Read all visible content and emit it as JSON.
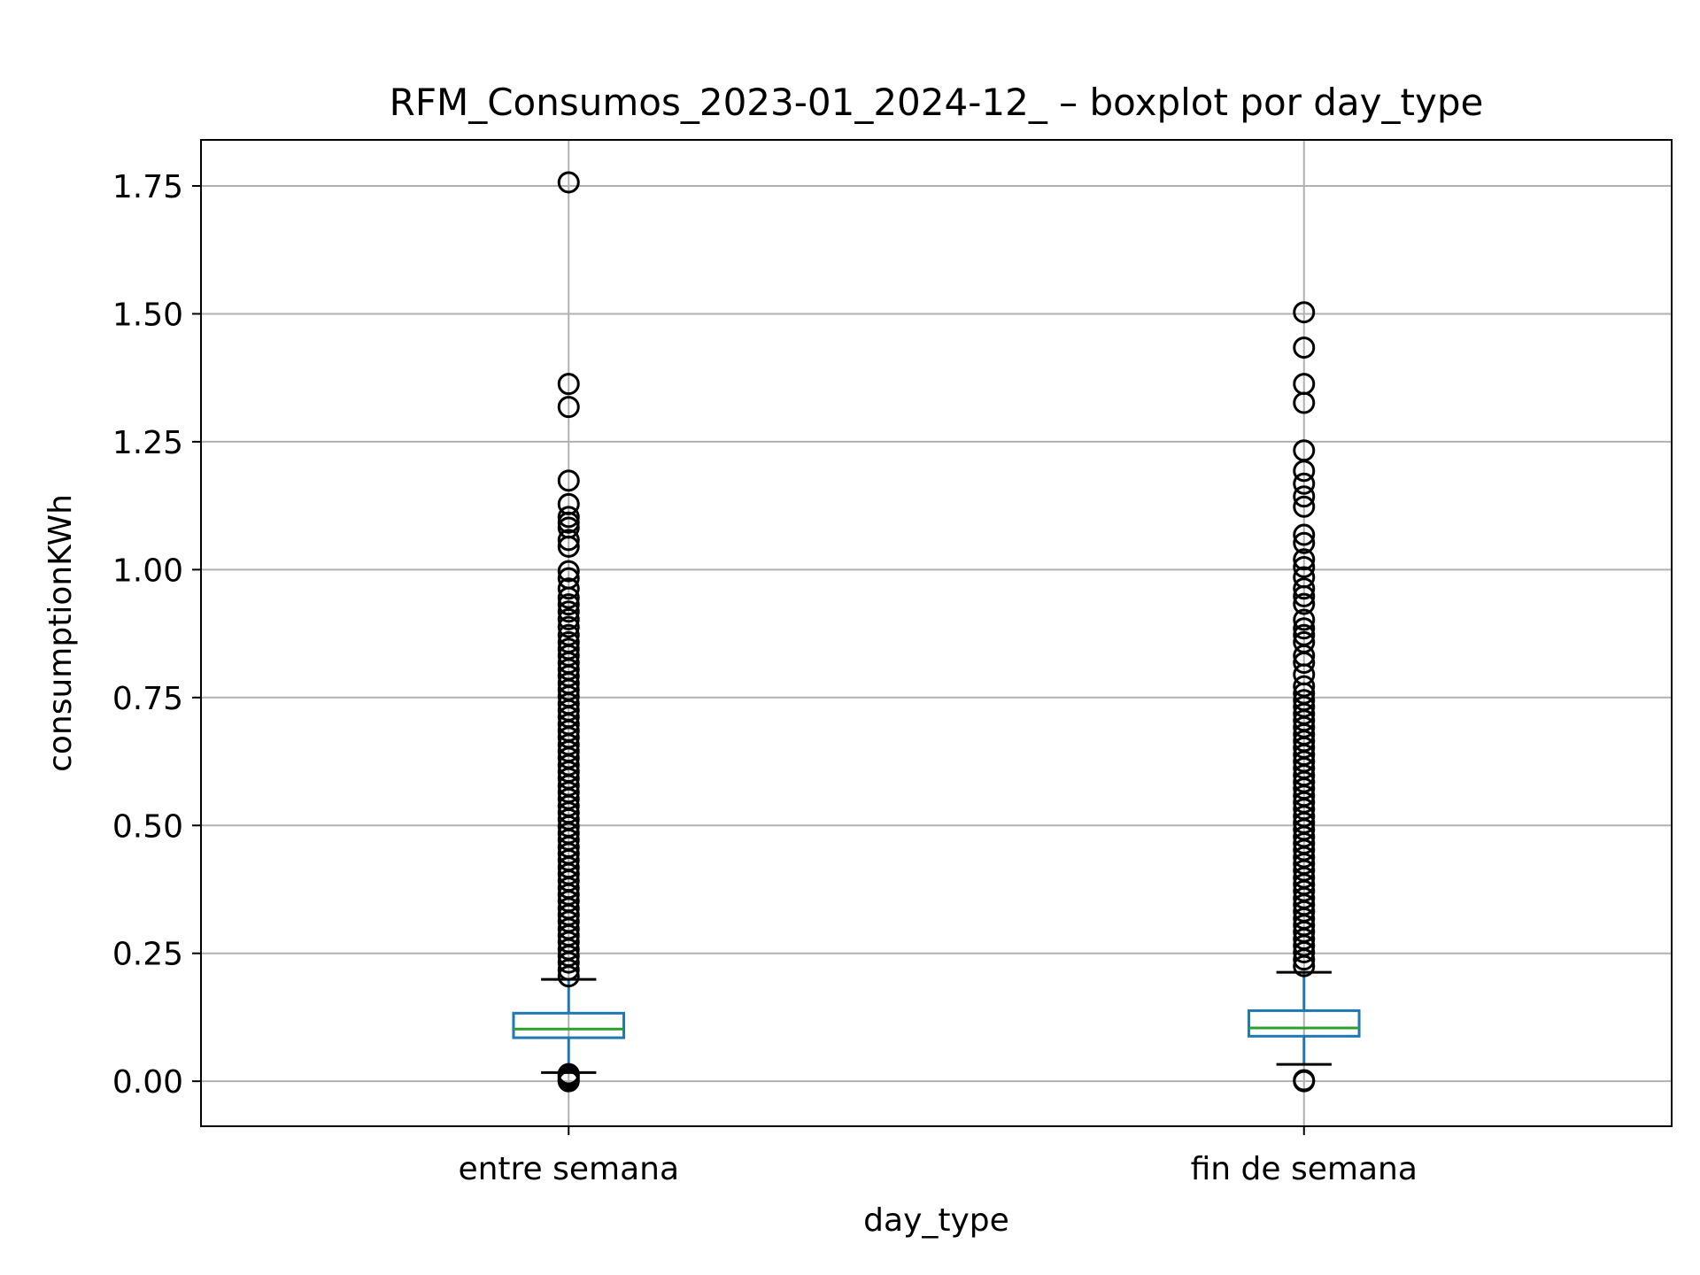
{
  "chart_data": {
    "type": "box",
    "title": "RFM_Consumos_2023-01_2024-12_ – boxplot por day_type",
    "xlabel": "day_type",
    "ylabel": "consumptionKWh",
    "ylim": [
      -0.088,
      1.84
    ],
    "grid": true,
    "yticks": [
      0.0,
      0.25,
      0.5,
      0.75,
      1.0,
      1.25,
      1.5,
      1.75
    ],
    "ytick_labels": [
      "0.00",
      "0.25",
      "0.50",
      "0.75",
      "1.00",
      "1.25",
      "1.50",
      "1.75"
    ],
    "categories": [
      "entre semana",
      "fin de semana"
    ],
    "boxes": [
      {
        "category": "entre semana",
        "whisker_low": 0.017,
        "q1": 0.085,
        "median": 0.102,
        "q3": 0.133,
        "whisker_high": 0.199,
        "outliers_high": [
          1.757,
          1.363,
          1.318,
          1.174,
          1.128,
          1.103,
          1.092,
          1.082,
          1.058,
          1.045,
          0.997,
          0.983,
          0.963,
          0.945,
          0.932,
          0.918,
          0.903,
          0.888,
          0.872,
          0.858,
          0.845,
          0.832,
          0.818,
          0.805,
          0.792,
          0.778,
          0.765,
          0.752,
          0.738,
          0.725,
          0.712,
          0.698,
          0.685,
          0.672,
          0.658,
          0.645,
          0.632,
          0.618,
          0.605,
          0.592,
          0.578,
          0.565,
          0.552,
          0.538,
          0.525,
          0.512,
          0.498,
          0.485,
          0.472,
          0.458,
          0.445,
          0.432,
          0.418,
          0.405,
          0.392,
          0.378,
          0.365,
          0.352,
          0.338,
          0.325,
          0.312,
          0.298,
          0.285,
          0.272,
          0.258,
          0.245,
          0.232,
          0.218,
          0.205
        ],
        "outliers_low": [
          0.014,
          0.01,
          0.006,
          0.002,
          0.0
        ]
      },
      {
        "category": "fin de semana",
        "whisker_low": 0.033,
        "q1": 0.088,
        "median": 0.104,
        "q3": 0.138,
        "whisker_high": 0.213,
        "outliers_high": [
          1.503,
          1.434,
          1.363,
          1.326,
          1.233,
          1.193,
          1.168,
          1.143,
          1.123,
          1.068,
          1.052,
          1.02,
          1.005,
          0.985,
          0.963,
          0.948,
          0.933,
          0.902,
          0.885,
          0.872,
          0.858,
          0.832,
          0.818,
          0.795,
          0.772,
          0.758,
          0.745,
          0.732,
          0.718,
          0.705,
          0.692,
          0.678,
          0.665,
          0.652,
          0.638,
          0.625,
          0.612,
          0.598,
          0.585,
          0.572,
          0.558,
          0.545,
          0.532,
          0.518,
          0.505,
          0.492,
          0.478,
          0.465,
          0.452,
          0.438,
          0.425,
          0.412,
          0.398,
          0.385,
          0.372,
          0.358,
          0.345,
          0.332,
          0.318,
          0.305,
          0.292,
          0.278,
          0.265,
          0.252,
          0.238,
          0.225
        ],
        "outliers_low": [
          0.002,
          0.0
        ]
      }
    ],
    "colors": {
      "box": "#1f77b4",
      "median": "#2ca02c",
      "cap": "#000000",
      "flier": "#000000",
      "grid": "#b0b0b0",
      "axes": "#000000"
    }
  }
}
